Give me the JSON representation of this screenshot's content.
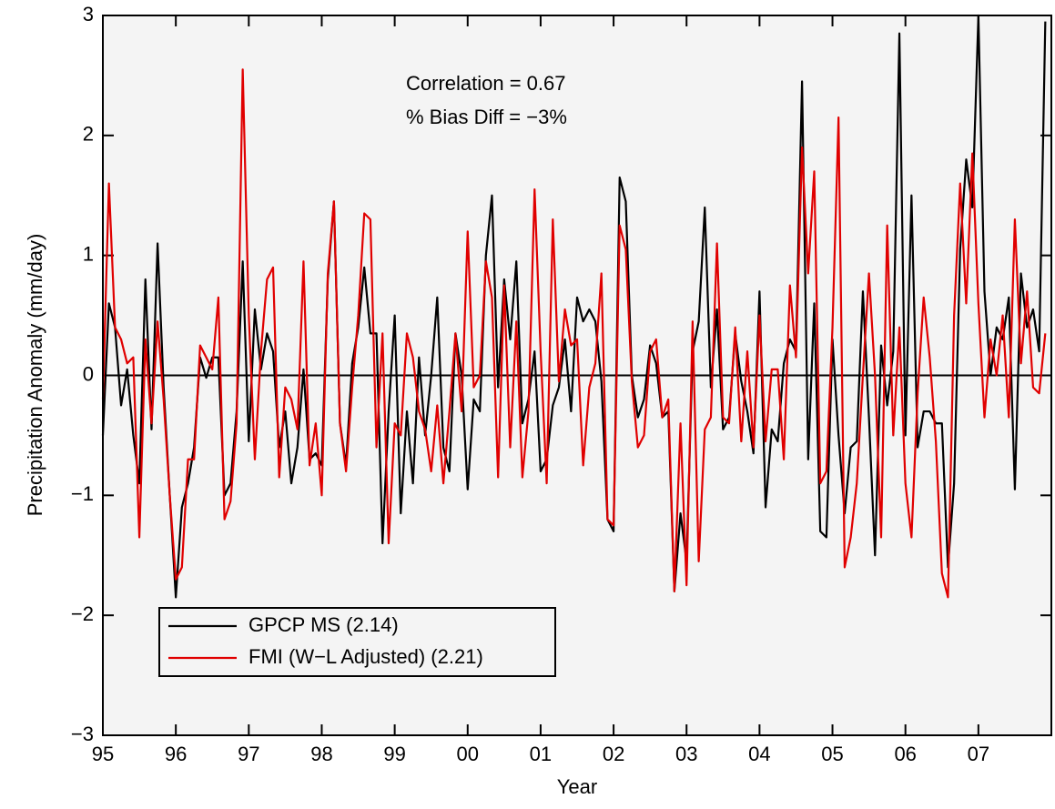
{
  "chart_data": {
    "type": "line",
    "x_label": "Year",
    "y_label": "Precipitation Anomaly (mm/day)",
    "annotations": [
      "Correlation = 0.67",
      "% Bias Diff = −3%"
    ],
    "xlim": [
      1995,
      2008
    ],
    "ylim": [
      -3,
      3
    ],
    "xticks": [
      {
        "value": 1995,
        "label": "95"
      },
      {
        "value": 1996,
        "label": "96"
      },
      {
        "value": 1997,
        "label": "97"
      },
      {
        "value": 1998,
        "label": "98"
      },
      {
        "value": 1999,
        "label": "99"
      },
      {
        "value": 2000,
        "label": "00"
      },
      {
        "value": 2001,
        "label": "01"
      },
      {
        "value": 2002,
        "label": "02"
      },
      {
        "value": 2003,
        "label": "03"
      },
      {
        "value": 2004,
        "label": "04"
      },
      {
        "value": 2005,
        "label": "05"
      },
      {
        "value": 2006,
        "label": "06"
      },
      {
        "value": 2007,
        "label": "07"
      }
    ],
    "yticks": [
      {
        "value": -3,
        "label": "−3"
      },
      {
        "value": -2,
        "label": "−2"
      },
      {
        "value": -1,
        "label": "−1"
      },
      0,
      1,
      2,
      3
    ],
    "reference_line": 0,
    "legend": "lower left",
    "x": [
      1995,
      1995.083,
      1995.167,
      1995.25,
      1995.333,
      1995.417,
      1995.5,
      1995.583,
      1995.667,
      1995.75,
      1995.833,
      1995.917,
      1996,
      1996.083,
      1996.167,
      1996.25,
      1996.333,
      1996.417,
      1996.5,
      1996.583,
      1996.667,
      1996.75,
      1996.833,
      1996.917,
      1997,
      1997.083,
      1997.167,
      1997.25,
      1997.333,
      1997.417,
      1997.5,
      1997.583,
      1997.667,
      1997.75,
      1997.833,
      1997.917,
      1998,
      1998.083,
      1998.167,
      1998.25,
      1998.333,
      1998.417,
      1998.5,
      1998.583,
      1998.667,
      1998.75,
      1998.833,
      1998.917,
      1999,
      1999.083,
      1999.167,
      1999.25,
      1999.333,
      1999.417,
      1999.5,
      1999.583,
      1999.667,
      1999.75,
      1999.833,
      1999.917,
      2000,
      2000.083,
      2000.167,
      2000.25,
      2000.333,
      2000.417,
      2000.5,
      2000.583,
      2000.667,
      2000.75,
      2000.833,
      2000.917,
      2001,
      2001.083,
      2001.167,
      2001.25,
      2001.333,
      2001.417,
      2001.5,
      2001.583,
      2001.667,
      2001.75,
      2001.833,
      2001.917,
      2002,
      2002.083,
      2002.167,
      2002.25,
      2002.333,
      2002.417,
      2002.5,
      2002.583,
      2002.667,
      2002.75,
      2002.833,
      2002.917,
      2003,
      2003.083,
      2003.167,
      2003.25,
      2003.333,
      2003.417,
      2003.5,
      2003.583,
      2003.667,
      2003.75,
      2003.833,
      2003.917,
      2004,
      2004.083,
      2004.167,
      2004.25,
      2004.333,
      2004.417,
      2004.5,
      2004.583,
      2004.667,
      2004.75,
      2004.833,
      2004.917,
      2005,
      2005.083,
      2005.167,
      2005.25,
      2005.333,
      2005.417,
      2005.5,
      2005.583,
      2005.667,
      2005.75,
      2005.833,
      2005.917,
      2006,
      2006.083,
      2006.167,
      2006.25,
      2006.333,
      2006.417,
      2006.5,
      2006.583,
      2006.667,
      2006.75,
      2006.833,
      2006.917,
      2007,
      2007.083,
      2007.167,
      2007.25,
      2007.333,
      2007.417,
      2007.5,
      2007.583,
      2007.667,
      2007.75,
      2007.833,
      2007.917
    ],
    "series": [
      {
        "name": "GPCP MS (2.14)",
        "color": "#000000",
        "values": [
          -0.5,
          0.6,
          0.4,
          -0.25,
          0.05,
          -0.5,
          -0.9,
          0.8,
          -0.45,
          1.1,
          -0.1,
          -1.0,
          -1.85,
          -1.1,
          -0.9,
          -0.6,
          0.15,
          -0.02,
          0.15,
          0.15,
          -1.0,
          -0.9,
          -0.3,
          0.95,
          -0.55,
          0.55,
          0.05,
          0.35,
          0.2,
          -0.6,
          -0.3,
          -0.9,
          -0.6,
          0.05,
          -0.7,
          -0.65,
          -0.75,
          0.8,
          1.45,
          -0.4,
          -0.75,
          0.1,
          0.4,
          0.9,
          0.35,
          0.35,
          -1.4,
          -0.3,
          0.5,
          -1.15,
          -0.3,
          -0.9,
          0.15,
          -0.5,
          0.0,
          0.65,
          -0.6,
          -0.8,
          0.35,
          0.0,
          -0.95,
          -0.2,
          -0.3,
          1.0,
          1.5,
          -0.1,
          0.8,
          0.3,
          0.95,
          -0.4,
          -0.2,
          0.2,
          -0.8,
          -0.7,
          -0.25,
          -0.1,
          0.3,
          -0.3,
          0.65,
          0.45,
          0.55,
          0.45,
          -0.05,
          -1.2,
          -1.3,
          1.65,
          1.45,
          0.0,
          -0.35,
          -0.2,
          0.25,
          0.1,
          -0.35,
          -0.3,
          -1.8,
          -1.15,
          -1.55,
          0.2,
          0.45,
          1.4,
          -0.1,
          0.55,
          -0.45,
          -0.35,
          0.35,
          -0.05,
          -0.3,
          -0.65,
          0.7,
          -1.1,
          -0.45,
          -0.55,
          0.1,
          0.3,
          0.2,
          2.45,
          -0.7,
          0.6,
          -1.3,
          -1.35,
          0.3,
          -0.5,
          -1.15,
          -0.6,
          -0.55,
          0.7,
          -0.35,
          -1.5,
          0.25,
          -0.25,
          0.2,
          2.85,
          -0.5,
          1.5,
          -0.6,
          -0.3,
          -0.3,
          -0.4,
          -0.4,
          -1.6,
          -0.9,
          1.05,
          1.8,
          1.4,
          3.0,
          0.7,
          0.0,
          0.4,
          0.3,
          0.65,
          -0.95,
          0.85,
          0.4,
          0.55,
          0.2,
          2.95
        ]
      },
      {
        "name": "FMI (W−L Adjusted) (2.21)",
        "color": "#e00000",
        "values": [
          -0.2,
          1.6,
          0.4,
          0.3,
          0.1,
          0.15,
          -1.35,
          0.3,
          -0.4,
          0.45,
          -0.2,
          -1.0,
          -1.7,
          -1.6,
          -0.7,
          -0.7,
          0.25,
          0.15,
          0.05,
          0.65,
          -1.2,
          -1.05,
          -0.4,
          2.55,
          0.5,
          -0.7,
          0.2,
          0.8,
          0.9,
          -0.85,
          -0.1,
          -0.2,
          -0.45,
          0.95,
          -0.75,
          -0.4,
          -1.0,
          0.85,
          1.45,
          -0.4,
          -0.8,
          -0.1,
          0.5,
          1.35,
          1.3,
          -0.6,
          0.35,
          -1.4,
          -0.4,
          -0.5,
          0.35,
          0.15,
          -0.3,
          -0.45,
          -0.8,
          -0.25,
          -0.9,
          -0.3,
          0.35,
          -0.3,
          1.2,
          -0.1,
          0.0,
          0.95,
          0.65,
          -0.85,
          0.75,
          -0.6,
          0.45,
          -0.85,
          -0.3,
          1.55,
          0.2,
          -0.9,
          1.3,
          -0.05,
          0.55,
          0.25,
          0.3,
          -0.75,
          -0.1,
          0.1,
          0.85,
          -1.2,
          -1.25,
          1.25,
          1.05,
          -0.05,
          -0.6,
          -0.5,
          0.2,
          0.3,
          -0.35,
          -0.2,
          -1.8,
          -0.4,
          -1.75,
          0.45,
          -1.55,
          -0.45,
          -0.35,
          1.1,
          -0.35,
          -0.4,
          0.4,
          -0.55,
          0.2,
          -0.6,
          0.5,
          -0.55,
          0.05,
          0.05,
          -0.7,
          0.75,
          0.15,
          1.9,
          0.85,
          1.7,
          -0.9,
          -0.8,
          0.4,
          2.15,
          -1.6,
          -1.35,
          -0.9,
          0.0,
          0.85,
          0.0,
          -1.35,
          1.25,
          -0.5,
          0.4,
          -0.9,
          -1.35,
          -0.15,
          0.65,
          0.15,
          -0.55,
          -1.65,
          -1.85,
          0.5,
          1.6,
          0.6,
          1.85,
          0.6,
          -0.35,
          0.3,
          0.0,
          0.5,
          -0.35,
          1.3,
          0.1,
          0.7,
          -0.1,
          -0.15,
          0.35
        ]
      }
    ]
  }
}
